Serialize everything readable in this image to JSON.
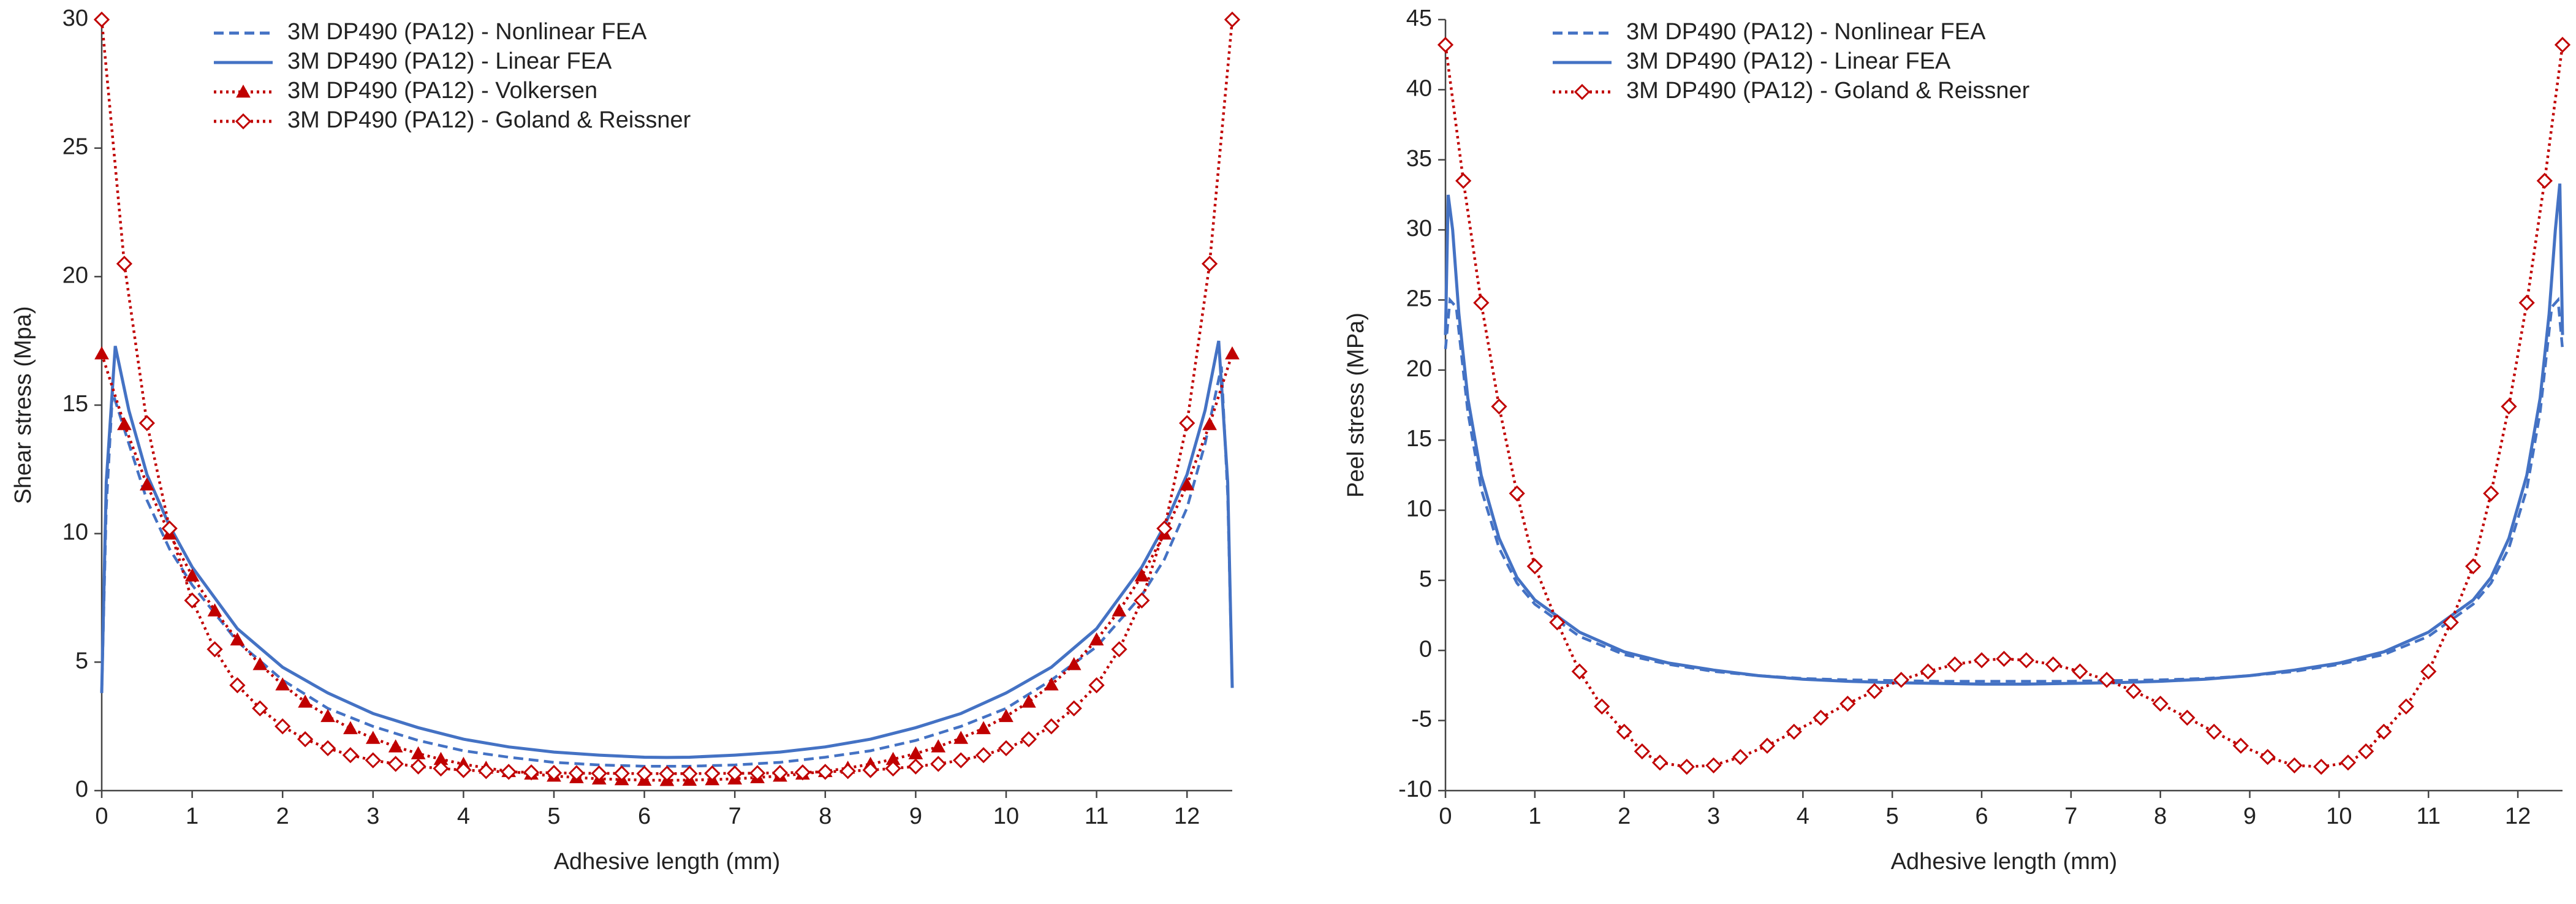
{
  "chart_data": [
    {
      "type": "line",
      "ylabel": "Shear stress (Mpa)",
      "xlabel": "Adhesive length (mm)",
      "xlim": [
        0,
        12.5
      ],
      "ylim": [
        0,
        30
      ],
      "xticks": [
        0,
        1,
        2,
        3,
        4,
        5,
        6,
        7,
        8,
        9,
        10,
        11,
        12
      ],
      "yticks": [
        0,
        5,
        10,
        15,
        20,
        25,
        30
      ],
      "grid": false,
      "legend": "upper left",
      "series": [
        {
          "name": "3M DP490 (PA12) - Nonlinear FEA",
          "color": "#4472c4",
          "dash": "dashed",
          "x": [
            0,
            0.05,
            0.12,
            0.3,
            0.5,
            0.75,
            1,
            1.5,
            2,
            2.5,
            3,
            3.5,
            4,
            4.5,
            5,
            5.5,
            6,
            6.25,
            6.5,
            7,
            7.5,
            8,
            8.5,
            9,
            9.5,
            10,
            10.5,
            11,
            11.5,
            11.75,
            12,
            12.2,
            12.38,
            12.45,
            12.5
          ],
          "values": [
            3.8,
            11,
            15.5,
            13.5,
            11.3,
            9.4,
            8.0,
            5.8,
            4.3,
            3.2,
            2.5,
            1.95,
            1.55,
            1.3,
            1.1,
            1.0,
            0.95,
            0.95,
            0.95,
            1.0,
            1.1,
            1.3,
            1.55,
            1.95,
            2.5,
            3.2,
            4.3,
            5.6,
            7.6,
            9.0,
            11.0,
            13.5,
            16.5,
            11.5,
            4.0
          ]
        },
        {
          "name": "3M DP490 (PA12) - Linear FEA",
          "color": "#4472c4",
          "dash": "solid",
          "x": [
            0,
            0.05,
            0.15,
            0.3,
            0.5,
            0.75,
            1,
            1.5,
            2,
            2.5,
            3,
            3.5,
            4,
            4.5,
            5,
            5.5,
            6,
            6.25,
            6.5,
            7,
            7.5,
            8,
            8.5,
            9,
            9.5,
            10,
            10.5,
            11,
            11.5,
            11.75,
            12,
            12.2,
            12.35,
            12.45,
            12.5
          ],
          "values": [
            3.8,
            12,
            17.3,
            14.8,
            12.3,
            10.3,
            8.7,
            6.3,
            4.8,
            3.8,
            3.0,
            2.45,
            2.0,
            1.7,
            1.5,
            1.38,
            1.3,
            1.29,
            1.3,
            1.38,
            1.5,
            1.7,
            2.0,
            2.45,
            3.0,
            3.8,
            4.8,
            6.3,
            8.7,
            10.3,
            12.3,
            14.8,
            17.5,
            12,
            4.0
          ]
        },
        {
          "name": "3M DP490 (PA12) - Volkersen",
          "color": "#c00000",
          "dash": "dotted",
          "marker": "triangle",
          "x": [
            0,
            0.25,
            0.5,
            0.75,
            1,
            1.25,
            1.5,
            1.75,
            2,
            2.25,
            2.5,
            2.75,
            3,
            3.25,
            3.5,
            3.75,
            4,
            4.25,
            4.5,
            4.75,
            5,
            5.25,
            5.5,
            5.75,
            6,
            6.25,
            6.5,
            6.75,
            7,
            7.25,
            7.5,
            7.75,
            8,
            8.25,
            8.5,
            8.75,
            9,
            9.25,
            9.5,
            9.75,
            10,
            10.25,
            10.5,
            10.75,
            11,
            11.25,
            11.5,
            11.75,
            12,
            12.25,
            12.5
          ],
          "values": [
            17.0,
            14.25,
            11.9,
            9.99,
            8.36,
            7.0,
            5.87,
            4.91,
            4.12,
            3.45,
            2.89,
            2.42,
            2.04,
            1.71,
            1.44,
            1.22,
            1.03,
            0.88,
            0.75,
            0.65,
            0.57,
            0.51,
            0.46,
            0.43,
            0.41,
            0.4,
            0.41,
            0.43,
            0.46,
            0.51,
            0.57,
            0.65,
            0.75,
            0.88,
            1.03,
            1.22,
            1.44,
            1.71,
            2.04,
            2.42,
            2.89,
            3.45,
            4.12,
            4.91,
            5.87,
            7.0,
            8.36,
            9.99,
            11.9,
            14.25,
            17.0
          ]
        },
        {
          "name": "3M DP490 (PA12) - Goland & Reissner",
          "color": "#c00000",
          "dash": "dotted",
          "marker": "diamond",
          "x": [
            0,
            0.25,
            0.5,
            0.75,
            1,
            1.25,
            1.5,
            1.75,
            2,
            2.25,
            2.5,
            2.75,
            3,
            3.25,
            3.5,
            3.75,
            4,
            4.25,
            4.5,
            4.75,
            5,
            5.25,
            5.5,
            5.75,
            6,
            6.25,
            6.5,
            6.75,
            7,
            7.25,
            7.5,
            7.75,
            8,
            8.25,
            8.5,
            8.75,
            9,
            9.25,
            9.5,
            9.75,
            10,
            10.25,
            10.5,
            10.75,
            11,
            11.25,
            11.5,
            11.75,
            12,
            12.25,
            12.5
          ],
          "values": [
            30,
            20.5,
            14.3,
            10.2,
            7.4,
            5.5,
            4.1,
            3.2,
            2.5,
            2.0,
            1.65,
            1.38,
            1.18,
            1.04,
            0.94,
            0.86,
            0.8,
            0.76,
            0.73,
            0.71,
            0.69,
            0.68,
            0.67,
            0.67,
            0.66,
            0.66,
            0.66,
            0.67,
            0.67,
            0.68,
            0.69,
            0.71,
            0.73,
            0.76,
            0.8,
            0.86,
            0.94,
            1.04,
            1.18,
            1.38,
            1.65,
            2.0,
            2.5,
            3.2,
            4.1,
            5.5,
            7.4,
            10.2,
            14.3,
            20.5,
            30
          ]
        }
      ]
    },
    {
      "type": "line",
      "ylabel": "Peel stress (MPa)",
      "xlabel": "Adhesive length (mm)",
      "xlim": [
        0,
        12.5
      ],
      "ylim": [
        -10,
        45
      ],
      "xticks": [
        0,
        1,
        2,
        3,
        4,
        5,
        6,
        7,
        8,
        9,
        10,
        11,
        12
      ],
      "yticks": [
        -10,
        -5,
        0,
        5,
        10,
        15,
        20,
        25,
        30,
        35,
        40,
        45
      ],
      "grid": false,
      "legend": "upper left",
      "series": [
        {
          "name": "3M DP490 (PA12) - Nonlinear FEA",
          "color": "#4472c4",
          "dash": "dashed",
          "x": [
            0,
            0.05,
            0.12,
            0.25,
            0.4,
            0.6,
            0.8,
            1,
            1.5,
            2,
            2.5,
            3,
            3.5,
            4,
            4.5,
            5,
            5.5,
            6,
            6.25,
            6.5,
            7,
            7.5,
            8,
            8.5,
            9,
            9.5,
            10,
            10.5,
            11,
            11.5,
            11.7,
            11.9,
            12.1,
            12.25,
            12.38,
            12.45,
            12.5
          ],
          "values": [
            21.5,
            25,
            24.5,
            17,
            11.5,
            7.3,
            4.8,
            3.3,
            1.0,
            -0.3,
            -1.0,
            -1.5,
            -1.8,
            -2.0,
            -2.1,
            -2.15,
            -2.2,
            -2.2,
            -2.2,
            -2.2,
            -2.2,
            -2.15,
            -2.1,
            -2.0,
            -1.8,
            -1.5,
            -1.0,
            -0.3,
            1.0,
            3.3,
            4.8,
            7.3,
            11.5,
            17,
            24.5,
            25,
            21.5
          ]
        },
        {
          "name": "3M DP490 (PA12) - Linear FEA",
          "color": "#4472c4",
          "dash": "solid",
          "x": [
            0,
            0.03,
            0.08,
            0.15,
            0.25,
            0.4,
            0.6,
            0.8,
            1,
            1.5,
            2,
            2.5,
            3,
            3.5,
            4,
            4.5,
            5,
            5.5,
            6,
            6.25,
            6.5,
            7,
            7.5,
            8,
            8.5,
            9,
            9.5,
            10,
            10.5,
            11,
            11.5,
            11.7,
            11.9,
            12.1,
            12.25,
            12.35,
            12.42,
            12.47,
            12.5
          ],
          "values": [
            22.5,
            32.5,
            30,
            24,
            18,
            12.5,
            8,
            5.2,
            3.6,
            1.3,
            -0.1,
            -0.9,
            -1.4,
            -1.8,
            -2.05,
            -2.2,
            -2.3,
            -2.35,
            -2.4,
            -2.4,
            -2.4,
            -2.35,
            -2.3,
            -2.2,
            -2.05,
            -1.8,
            -1.4,
            -0.9,
            -0.1,
            1.3,
            3.6,
            5.2,
            8,
            12.5,
            18,
            24,
            30,
            33.3,
            22.5
          ]
        },
        {
          "name": "3M DP490 (PA12) - Goland & Reissner",
          "color": "#c00000",
          "dash": "dotted",
          "marker": "diamond",
          "x": [
            0,
            0.2,
            0.4,
            0.6,
            0.8,
            1.0,
            1.25,
            1.5,
            1.75,
            2.0,
            2.2,
            2.4,
            2.7,
            3.0,
            3.3,
            3.6,
            3.9,
            4.2,
            4.5,
            4.8,
            5.1,
            5.4,
            5.7,
            6.0,
            6.25,
            6.5,
            6.8,
            7.1,
            7.4,
            7.7,
            8.0,
            8.3,
            8.6,
            8.9,
            9.2,
            9.5,
            9.8,
            10.1,
            10.3,
            10.5,
            10.75,
            11.0,
            11.25,
            11.5,
            11.7,
            11.9,
            12.1,
            12.3,
            12.5
          ],
          "values": [
            43.2,
            33.5,
            24.8,
            17.4,
            11.2,
            6.0,
            2.0,
            -1.5,
            -4.0,
            -5.8,
            -7.2,
            -8.0,
            -8.3,
            -8.2,
            -7.6,
            -6.8,
            -5.8,
            -4.8,
            -3.8,
            -2.9,
            -2.1,
            -1.5,
            -1.0,
            -0.7,
            -0.6,
            -0.7,
            -1.0,
            -1.5,
            -2.1,
            -2.9,
            -3.8,
            -4.8,
            -5.8,
            -6.8,
            -7.6,
            -8.2,
            -8.3,
            -8.0,
            -7.2,
            -5.8,
            -4.0,
            -1.5,
            2.0,
            6.0,
            11.2,
            17.4,
            24.8,
            33.5,
            43.2
          ]
        }
      ]
    }
  ]
}
